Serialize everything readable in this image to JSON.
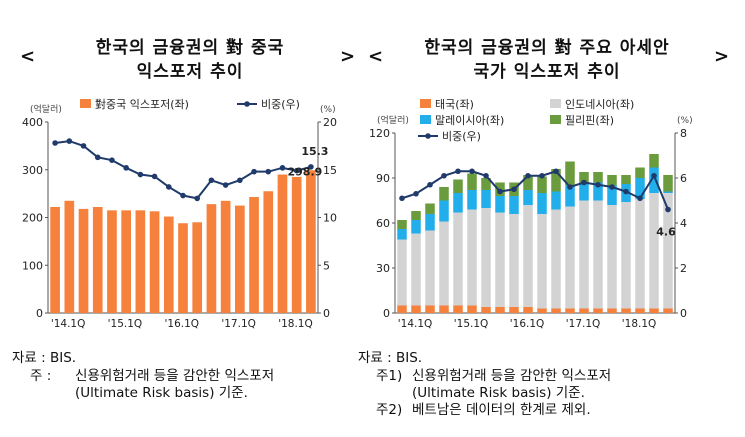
{
  "left": {
    "title_line1": "한국의 금융권의 對 중국",
    "title_line2": "익스포저 추이",
    "arrow_left": "<",
    "arrow_right": ">",
    "left_unit": "(억달러)",
    "right_unit": "(%)",
    "source": "자료 : BIS.",
    "note_label": "주 :",
    "note_line1": "신용위험거래 등을 감안한 익스포저",
    "note_line2": "(Ultimate Risk basis) 기준."
  },
  "right": {
    "title_line1": "한국의 금융권의 對 주요 아세안",
    "title_line2": "국가 익스포저 추이",
    "arrow_left": "<",
    "arrow_right": ">",
    "left_unit": "(억달러)",
    "right_unit": "(%)",
    "source": "자료 : BIS.",
    "note1_label": "주1)",
    "note1_line1": "신용위험거래 등을 감안한 익스포저",
    "note1_line2": "(Ultimate Risk basis) 기준.",
    "note2_label": "주2)",
    "note2_line1": "베트남은 데이터의 한계로 제외."
  },
  "chart_data": [
    {
      "type": "bar",
      "x_ticks": [
        "'14.1Q",
        "'15.1Q",
        "'16.1Q",
        "'17.1Q",
        "'18.1Q"
      ],
      "legend": [
        "對중국 익스포저(좌)",
        "비중(우)"
      ],
      "colors": {
        "bar": "#F5813C",
        "line": "#1F3A6B"
      },
      "y_left": {
        "min": 0,
        "max": 400,
        "ticks": [
          0,
          100,
          200,
          300,
          400
        ]
      },
      "y_right": {
        "min": 0,
        "max": 20,
        "ticks": [
          0,
          5,
          10,
          15,
          20
        ]
      },
      "series": [
        {
          "name": "對중국 익스포저(좌)",
          "axis": "left",
          "values": [
            222,
            235,
            218,
            222,
            215,
            215,
            215,
            213,
            202,
            188,
            190,
            228,
            235,
            225,
            243,
            255,
            290,
            285,
            298.9
          ]
        },
        {
          "name": "비중(우)",
          "axis": "right",
          "values": [
            17.8,
            18.0,
            17.5,
            16.3,
            16.0,
            15.2,
            14.5,
            14.3,
            13.2,
            12.3,
            12.0,
            13.9,
            13.4,
            13.9,
            14.8,
            14.8,
            15.2,
            14.9,
            15.3
          ]
        }
      ],
      "labels": {
        "bar_last": "298.9",
        "line_last": "15.3"
      }
    },
    {
      "type": "bar",
      "stacked": true,
      "x_ticks": [
        "'14.1Q",
        "'15.1Q",
        "'16.1Q",
        "'17.1Q",
        "'18.1Q"
      ],
      "legend": [
        "태국(좌)",
        "인도네시아(좌)",
        "말레이시아(좌)",
        "필리핀(좌)",
        "비중(우)"
      ],
      "colors": {
        "태국": "#F5813C",
        "인도네시아": "#D3D3D3",
        "말레이시아": "#22AEEA",
        "필리핀": "#6A9B3C",
        "line": "#1F3A6B"
      },
      "y_left": {
        "min": 0,
        "max": 120,
        "ticks": [
          0,
          30,
          60,
          90,
          120
        ]
      },
      "y_right": {
        "min": 0,
        "max": 8,
        "ticks": [
          0,
          2,
          4,
          6,
          8
        ]
      },
      "series": [
        {
          "name": "태국(좌)",
          "axis": "left",
          "values": [
            5,
            5,
            5,
            5,
            5,
            5,
            4,
            4,
            4,
            4,
            3,
            3,
            3,
            3,
            3,
            3,
            3,
            3,
            3,
            3
          ]
        },
        {
          "name": "인도네시아(좌)",
          "axis": "left",
          "values": [
            44,
            48,
            50,
            56,
            62,
            64,
            66,
            63,
            62,
            68,
            63,
            66,
            68,
            72,
            72,
            69,
            71,
            73,
            77,
            77
          ]
        },
        {
          "name": "말레이시아(좌)",
          "axis": "left",
          "values": [
            7,
            9,
            11,
            14,
            13,
            13,
            12,
            11,
            12,
            10,
            14,
            12,
            14,
            11,
            12,
            13,
            12,
            14,
            17,
            1
          ]
        },
        {
          "name": "필리핀(좌)",
          "axis": "left",
          "values": [
            6,
            6,
            7,
            9,
            9,
            11,
            8,
            9,
            9,
            10,
            11,
            15,
            16,
            8,
            7,
            7,
            6,
            7,
            9,
            11
          ]
        },
        {
          "name": "비중(우)",
          "axis": "right",
          "values": [
            5.1,
            5.3,
            5.7,
            6.1,
            6.3,
            6.3,
            6.1,
            5.4,
            5.5,
            6.1,
            6.1,
            6.3,
            5.6,
            5.8,
            5.7,
            5.6,
            5.4,
            5.1,
            6.1,
            4.6
          ]
        }
      ],
      "labels": {
        "line_last": "4.6"
      }
    }
  ]
}
